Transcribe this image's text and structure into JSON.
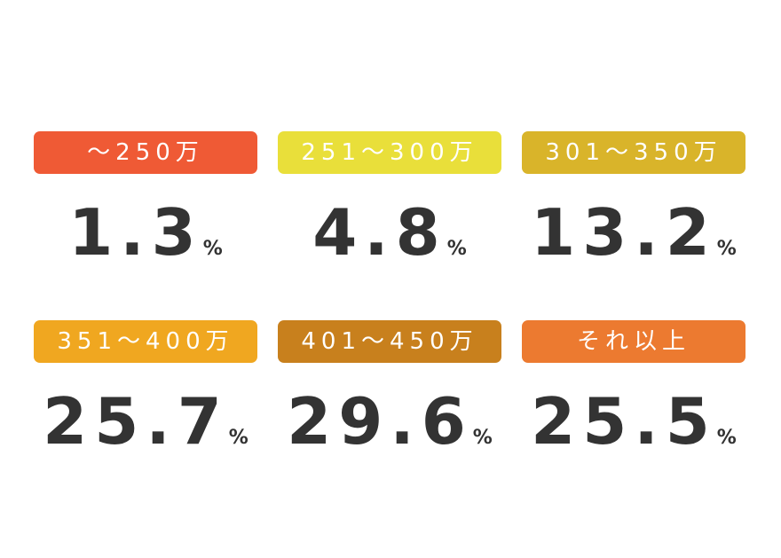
{
  "unit": "%",
  "items": [
    {
      "label": "〜250万",
      "value": "1.3",
      "color": "#ef5a35"
    },
    {
      "label": "251〜300万",
      "value": "4.8",
      "color": "#e9df3a"
    },
    {
      "label": "301〜350万",
      "value": "13.2",
      "color": "#d9b42a"
    },
    {
      "label": "351〜400万",
      "value": "25.7",
      "color": "#f0a720"
    },
    {
      "label": "401〜450万",
      "value": "29.6",
      "color": "#c8801d"
    },
    {
      "label": "それ以上",
      "value": "25.5",
      "color": "#ec7a30"
    }
  ]
}
